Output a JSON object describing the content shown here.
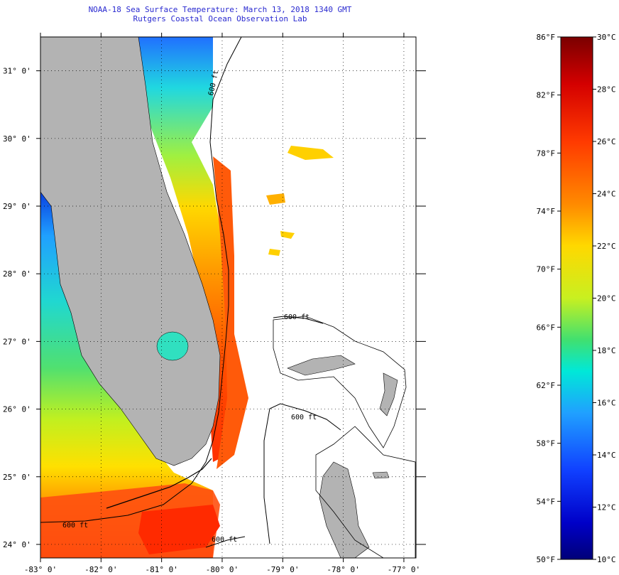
{
  "title": {
    "line1": "NOAA-18 Sea Surface Temperature:  March 13, 2018 1340 GMT",
    "line2": "Rutgers Coastal Ocean Observation Lab"
  },
  "map": {
    "lon_range": [
      -83,
      -76.8
    ],
    "lat_range": [
      23.8,
      31.5
    ],
    "lon_ticks": [
      {
        "value": -83,
        "label": "-83° 0'"
      },
      {
        "value": -82,
        "label": "-82° 0'"
      },
      {
        "value": -81,
        "label": "-81° 0'"
      },
      {
        "value": -80,
        "label": "-80° 0'"
      },
      {
        "value": -79,
        "label": "-79° 0'"
      },
      {
        "value": -78,
        "label": "-78° 0'"
      },
      {
        "value": -77,
        "label": "-77° 0'"
      }
    ],
    "lat_ticks": [
      {
        "value": 31,
        "label": "31° 0'"
      },
      {
        "value": 30,
        "label": "30° 0'"
      },
      {
        "value": 29,
        "label": "29° 0'"
      },
      {
        "value": 28,
        "label": "28° 0'"
      },
      {
        "value": 27,
        "label": "27° 0'"
      },
      {
        "value": 26,
        "label": "26° 0'"
      },
      {
        "value": 25,
        "label": "25° 0'"
      },
      {
        "value": 24,
        "label": "24° 0'"
      }
    ],
    "grid": true,
    "land_color": "#b3b3b3",
    "contour_labels": [
      "600 ft",
      "600 ft",
      "600 ft",
      "600 ft",
      "600 ft"
    ]
  },
  "colorbar": {
    "fahrenheit": [
      {
        "value": 86,
        "label": "86°F"
      },
      {
        "value": 82,
        "label": "82°F"
      },
      {
        "value": 78,
        "label": "78°F"
      },
      {
        "value": 74,
        "label": "74°F"
      },
      {
        "value": 70,
        "label": "70°F"
      },
      {
        "value": 66,
        "label": "66°F"
      },
      {
        "value": 62,
        "label": "62°F"
      },
      {
        "value": 58,
        "label": "58°F"
      },
      {
        "value": 54,
        "label": "54°F"
      },
      {
        "value": 50,
        "label": "50°F"
      }
    ],
    "celsius": [
      {
        "value": 30,
        "label": "30°C"
      },
      {
        "value": 28,
        "label": "28°C"
      },
      {
        "value": 26,
        "label": "26°C"
      },
      {
        "value": 24,
        "label": "24°C"
      },
      {
        "value": 22,
        "label": "22°C"
      },
      {
        "value": 20,
        "label": "20°C"
      },
      {
        "value": 18,
        "label": "18°C"
      },
      {
        "value": 16,
        "label": "16°C"
      },
      {
        "value": 14,
        "label": "14°C"
      },
      {
        "value": 12,
        "label": "12°C"
      },
      {
        "value": 10,
        "label": "10°C"
      }
    ],
    "stops": [
      "#7a0000",
      "#d40000",
      "#ff3a00",
      "#ff8a00",
      "#ffd800",
      "#c8f020",
      "#40e070",
      "#00e8d8",
      "#20a0ff",
      "#1040ff",
      "#0000c8",
      "#000078"
    ]
  }
}
